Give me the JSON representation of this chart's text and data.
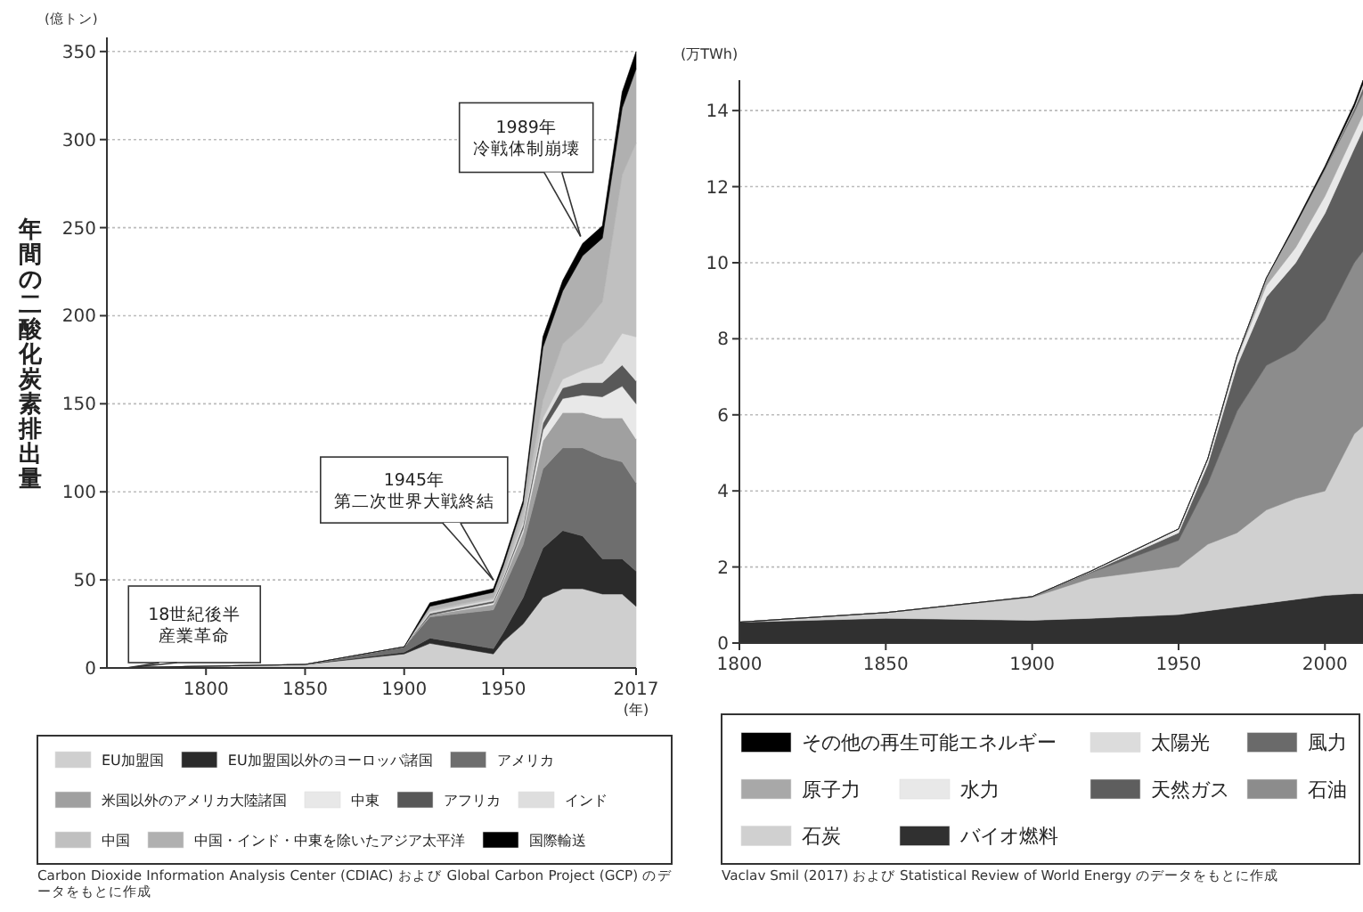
{
  "chart_data": [
    {
      "type": "area",
      "stacked": true,
      "ylabel": "年間の二酸化炭素排出量",
      "xlabel": "(年)",
      "x": [
        1750,
        1850,
        1900,
        1913,
        1945,
        1950,
        1960,
        1970,
        1980,
        1990,
        2000,
        2010,
        2017
      ],
      "xlim": [
        1750,
        2017
      ],
      "xticks": [
        1800,
        1850,
        1900,
        1950,
        2017
      ],
      "ylim": [
        0,
        358
      ],
      "yticks": [
        0,
        50,
        100,
        150,
        200,
        250,
        300,
        350
      ],
      "grid": "y",
      "legend": "bottom",
      "series": [
        {
          "name": "EU加盟国",
          "color": "#cfcfcf",
          "values": [
            0,
            2,
            8,
            14,
            8,
            15,
            25,
            40,
            45,
            45,
            42,
            42,
            35
          ]
        },
        {
          "name": "EU加盟国以外のヨーロッパ諸国",
          "color": "#2b2b2b",
          "values": [
            0,
            0,
            1,
            3,
            3,
            5,
            15,
            28,
            33,
            30,
            20,
            20,
            20
          ]
        },
        {
          "name": "アメリカ",
          "color": "#6e6e6e",
          "values": [
            0,
            0,
            3,
            12,
            22,
            25,
            30,
            45,
            47,
            50,
            58,
            55,
            50
          ]
        },
        {
          "name": "米国以外のアメリカ大陸諸国",
          "color": "#a0a0a0",
          "values": [
            0,
            0,
            0,
            1,
            3,
            4,
            7,
            16,
            20,
            20,
            22,
            25,
            25
          ]
        },
        {
          "name": "中東",
          "color": "#e8e8e8",
          "values": [
            0,
            0,
            0,
            0,
            1,
            1,
            2,
            6,
            8,
            10,
            12,
            18,
            20
          ]
        },
        {
          "name": "アフリカ",
          "color": "#585858",
          "values": [
            0,
            0,
            0,
            1,
            1,
            1,
            2,
            4,
            6,
            7,
            8,
            12,
            13
          ]
        },
        {
          "name": "インド",
          "color": "#dedede",
          "values": [
            0,
            0,
            0,
            1,
            1,
            1,
            2,
            3,
            5,
            7,
            11,
            18,
            25
          ]
        },
        {
          "name": "中国",
          "color": "#c0c0c0",
          "values": [
            0,
            0,
            0,
            1,
            1,
            1,
            6,
            10,
            20,
            25,
            35,
            90,
            110
          ]
        },
        {
          "name": "中国・インド・中東を除いたアジア太平洋",
          "color": "#b0b0b0",
          "values": [
            0,
            0,
            0,
            2,
            3,
            5,
            4,
            30,
            30,
            40,
            36,
            38,
            42
          ]
        },
        {
          "name": "国際輸送",
          "color": "#000000",
          "values": [
            0,
            0,
            0,
            2,
            2,
            2,
            2,
            6,
            6,
            7,
            7,
            9,
            10
          ]
        }
      ],
      "annotations": [
        {
          "text": "18世紀後半産業革命",
          "x": 1760,
          "y": 0
        },
        {
          "text": "1945年第二次世界大戦終結",
          "x": 1945,
          "y": 50
        },
        {
          "text": "1989年冷戦体制崩壊",
          "x": 1989,
          "y": 245
        },
        "(億トン)",
        "Carbon Dioxide Information Analysis Center (CDIAC) および Global Carbon Project (GCP) のデータをもとに作成"
      ]
    },
    {
      "type": "area",
      "stacked": true,
      "ylabel": "(万TWh)",
      "x": [
        1800,
        1850,
        1900,
        1920,
        1950,
        1960,
        1970,
        1980,
        1990,
        2000,
        2010,
        2013
      ],
      "xlim": [
        1800,
        2013
      ],
      "xticks": [
        1800,
        1850,
        1900,
        1950,
        2000
      ],
      "ylim": [
        0,
        14.8
      ],
      "yticks": [
        0,
        2,
        4,
        6,
        8,
        10,
        12,
        14
      ],
      "grid": "y",
      "legend": "bottom",
      "series": [
        {
          "name": "バイオ燃料",
          "color": "#303030",
          "values": [
            0.55,
            0.65,
            0.6,
            0.65,
            0.75,
            0.85,
            0.95,
            1.05,
            1.15,
            1.25,
            1.3,
            1.3
          ]
        },
        {
          "name": "石炭",
          "color": "#d0d0d0",
          "values": [
            0,
            0.15,
            0.6,
            1.05,
            1.25,
            1.75,
            1.95,
            2.45,
            2.65,
            2.75,
            4.2,
            4.4
          ]
        },
        {
          "name": "石油",
          "color": "#8c8c8c",
          "values": [
            0,
            0,
            0.02,
            0.15,
            0.7,
            1.6,
            3.2,
            3.8,
            3.9,
            4.5,
            4.5,
            4.6
          ]
        },
        {
          "name": "天然ガス",
          "color": "#5e5e5e",
          "values": [
            0,
            0,
            0,
            0.02,
            0.2,
            0.5,
            1.2,
            1.8,
            2.3,
            2.8,
            3.0,
            3.2
          ]
        },
        {
          "name": "水力",
          "color": "#e8e8e8",
          "values": [
            0,
            0,
            0,
            0.02,
            0.1,
            0.15,
            0.2,
            0.3,
            0.4,
            0.45,
            0.4,
            0.4
          ]
        },
        {
          "name": "原子力",
          "color": "#a8a8a8",
          "values": [
            0,
            0,
            0,
            0,
            0,
            0,
            0.05,
            0.2,
            0.6,
            0.7,
            0.55,
            0.55
          ]
        },
        {
          "name": "風力",
          "color": "#6a6a6a",
          "values": [
            0,
            0,
            0,
            0,
            0,
            0,
            0,
            0,
            0,
            0.03,
            0.1,
            0.15
          ]
        },
        {
          "name": "太陽光",
          "color": "#dcdcdc",
          "values": [
            0,
            0,
            0,
            0,
            0,
            0,
            0,
            0,
            0,
            0,
            0.05,
            0.1
          ]
        },
        {
          "name": "その他の再生可能エネルギー",
          "color": "#000000",
          "values": [
            0,
            0,
            0,
            0,
            0,
            0,
            0,
            0,
            0.05,
            0.06,
            0.08,
            0.1
          ]
        }
      ],
      "annotations": [
        "Vaclav Smil (2017) および Statistical Review of World Energy のデータをもとに作成"
      ]
    }
  ]
}
